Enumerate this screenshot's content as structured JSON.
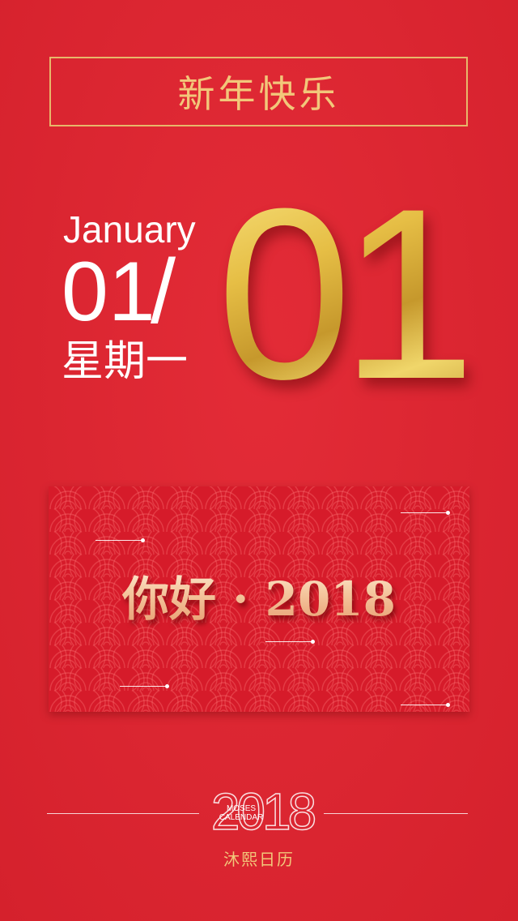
{
  "header": {
    "title": "新年快乐"
  },
  "date": {
    "month": "January",
    "day_small": "01",
    "slash": "/",
    "weekday": "星期一",
    "day_big": "01"
  },
  "banner": {
    "greeting": "你好 · 2018"
  },
  "footer": {
    "logo_year": "2018",
    "logo_brand_line1": "MOSES",
    "logo_brand_line2": "CALENDAR",
    "brand_cn": "沐熙日历"
  },
  "colors": {
    "background": "#e2232f",
    "gold": "#f2c77a",
    "gold_border": "#e7b76a",
    "banner": "#d61b2a"
  }
}
